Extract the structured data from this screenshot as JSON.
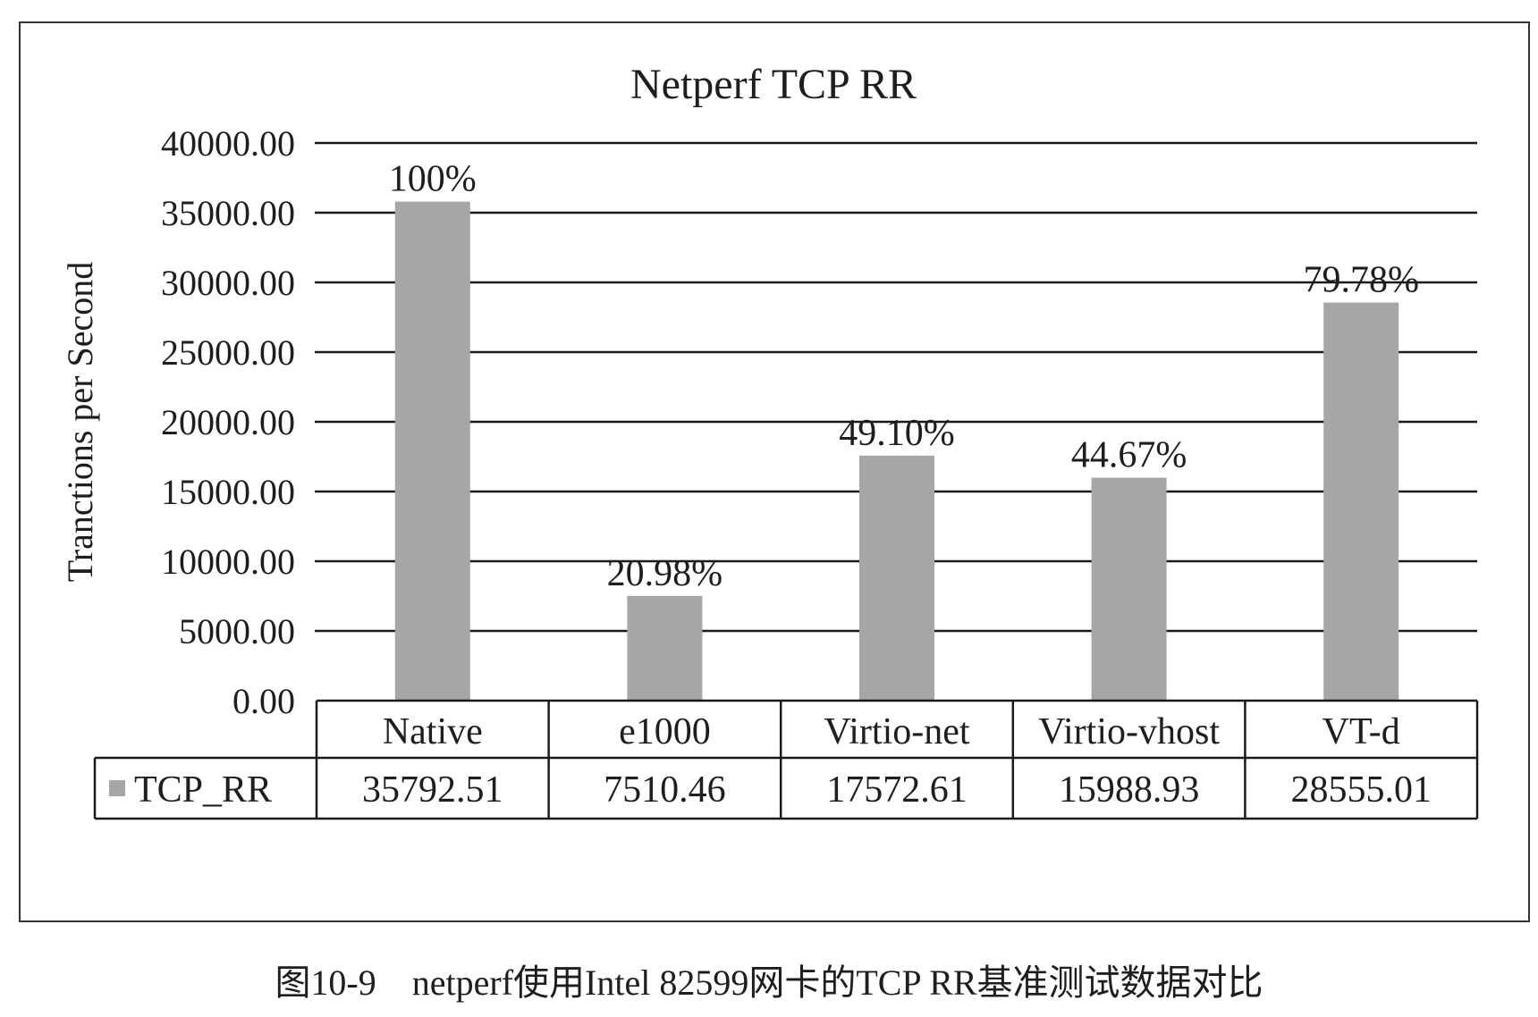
{
  "chart_data": {
    "type": "bar",
    "title": "Netperf TCP RR",
    "ylabel": "Tranctions per Second",
    "xlabel": "",
    "categories": [
      "Native",
      "e1000",
      "Virtio-net",
      "Virtio-vhost",
      "VT-d"
    ],
    "series": [
      {
        "name": "TCP_RR",
        "values": [
          35792.51,
          7510.46,
          17572.61,
          15988.93,
          28555.01
        ],
        "value_labels": [
          "35792.51",
          "7510.46",
          "17572.61",
          "15988.93",
          "28555.01"
        ],
        "color": "#a6a6a6"
      }
    ],
    "data_labels": [
      "100%",
      "20.98%",
      "49.10%",
      "44.67%",
      "79.78%"
    ],
    "y_ticks": [
      0,
      5000,
      10000,
      15000,
      20000,
      25000,
      30000,
      35000,
      40000
    ],
    "y_tick_labels": [
      "0.00",
      "5000.00",
      "10000.00",
      "15000.00",
      "20000.00",
      "25000.00",
      "30000.00",
      "35000.00",
      "40000.00"
    ],
    "ylim": [
      0,
      40000
    ],
    "grid": true,
    "legend": "data-table",
    "colors": {
      "bar": "#a6a6a6",
      "gridline": "#1a1a1a",
      "text": "#1e1e1e"
    }
  },
  "caption": "图10-9　netperf使用Intel 82599网卡的TCP RR基准测试数据对比"
}
